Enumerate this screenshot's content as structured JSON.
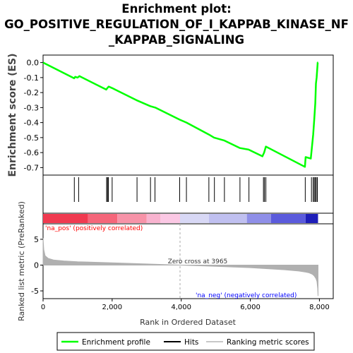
{
  "title_lines": [
    "Enrichment plot:",
    "GO_POSITIVE_REGULATION_OF_I_KAPPAB_KINASE_NF",
    "_KAPPAB_SIGNALING"
  ],
  "colors": {
    "enrichment_line": "#00ff00",
    "hits": "#000000",
    "metric_fill": "#b0b0b0",
    "pos_label": "#ff0000",
    "neg_label": "#0000ff",
    "zero_line": "#aaaaaa"
  },
  "chart_data": [
    {
      "type": "line",
      "name": "enrichment-profile",
      "ylabel": "Enrichment score (ES)",
      "xlim": [
        0,
        8400
      ],
      "ylim": [
        -0.75,
        0.05
      ],
      "yticks": [
        0.0,
        -0.1,
        -0.2,
        -0.3,
        -0.4,
        -0.5,
        -0.6,
        -0.7
      ],
      "ytick_labels": [
        "0.0",
        "-0.1",
        "-0.2",
        "-0.3",
        "-0.4",
        "-0.5",
        "-0.6",
        "-0.7"
      ],
      "grid": false,
      "x": [
        0,
        900,
        930,
        1000,
        1050,
        1830,
        1860,
        1880,
        1900,
        2000,
        2700,
        3100,
        3250,
        3950,
        4150,
        4800,
        4950,
        5250,
        5700,
        5950,
        6350,
        6400,
        6450,
        7580,
        7600,
        7750,
        7780,
        7820,
        7850,
        7880,
        7900,
        7920,
        7950,
        7960
      ],
      "y": [
        0.0,
        -0.105,
        -0.095,
        -0.1,
        -0.09,
        -0.18,
        -0.17,
        -0.165,
        -0.16,
        -0.17,
        -0.25,
        -0.29,
        -0.3,
        -0.38,
        -0.4,
        -0.48,
        -0.5,
        -0.52,
        -0.57,
        -0.58,
        -0.625,
        -0.6,
        -0.56,
        -0.695,
        -0.63,
        -0.64,
        -0.57,
        -0.48,
        -0.38,
        -0.27,
        -0.14,
        -0.1,
        0.0,
        0.0
      ]
    },
    {
      "type": "scatter",
      "name": "hits",
      "x": [
        905,
        1030,
        1840,
        1865,
        1890,
        2000,
        2720,
        3110,
        3240,
        3955,
        4150,
        4800,
        4960,
        5250,
        5700,
        5960,
        6380,
        6410,
        6450,
        7590,
        7770,
        7820,
        7850,
        7880,
        7910,
        7940
      ]
    },
    {
      "type": "area",
      "name": "ranked-list-metric",
      "ylabel": "Ranked list metric (PreRanked)",
      "xlabel": "Rank in Ordered Dataset",
      "xlim": [
        0,
        8400
      ],
      "ylim": [
        -6.5,
        8
      ],
      "yticks": [
        5,
        0,
        -5
      ],
      "ytick_labels": [
        "5",
        "0",
        "-5"
      ],
      "xticks": [
        0,
        2000,
        4000,
        6000,
        8000
      ],
      "xtick_labels": [
        "0",
        "2,000",
        "4,000",
        "6,000",
        "8,000"
      ],
      "x": [
        0,
        20,
        60,
        150,
        300,
        600,
        1000,
        2000,
        3000,
        3965,
        5000,
        6000,
        6500,
        7000,
        7400,
        7600,
        7700,
        7800,
        7850,
        7900,
        7930,
        7950,
        7960
      ],
      "y": [
        5.2,
        3.0,
        1.8,
        1.3,
        1.0,
        0.8,
        0.65,
        0.45,
        0.22,
        0.0,
        -0.25,
        -0.5,
        -0.7,
        -0.9,
        -1.15,
        -1.35,
        -1.5,
        -1.8,
        -2.1,
        -2.6,
        -3.2,
        -4.5,
        -6.0
      ],
      "zero_cross_label": "Zero cross at 3965",
      "pos_label": "'na_pos' (positively correlated)",
      "neg_label": "'na_neg' (negatively correlated)"
    }
  ],
  "rank_gradient": [
    {
      "x0": 0,
      "x1": 1300,
      "color": "#f03a50"
    },
    {
      "x0": 1300,
      "x1": 2150,
      "color": "#f5667a"
    },
    {
      "x0": 2150,
      "x1": 3000,
      "color": "#f793a8"
    },
    {
      "x0": 3000,
      "x1": 3400,
      "color": "#f8b3cf"
    },
    {
      "x0": 3400,
      "x1": 3965,
      "color": "#fbc8e4"
    },
    {
      "x0": 3965,
      "x1": 4800,
      "color": "#d8d8f5"
    },
    {
      "x0": 4800,
      "x1": 5900,
      "color": "#c0c0f0"
    },
    {
      "x0": 5900,
      "x1": 6600,
      "color": "#8f8fe8"
    },
    {
      "x0": 6600,
      "x1": 7600,
      "color": "#5b5bdc"
    },
    {
      "x0": 7600,
      "x1": 7960,
      "color": "#1e1eb8"
    }
  ],
  "legend": {
    "items": [
      {
        "label": "Enrichment profile",
        "color": "#00ff00",
        "kind": "line"
      },
      {
        "label": "Hits",
        "color": "#000000",
        "kind": "hit"
      },
      {
        "label": "Ranking metric scores",
        "color": "#c8c8c8",
        "kind": "line"
      }
    ]
  }
}
